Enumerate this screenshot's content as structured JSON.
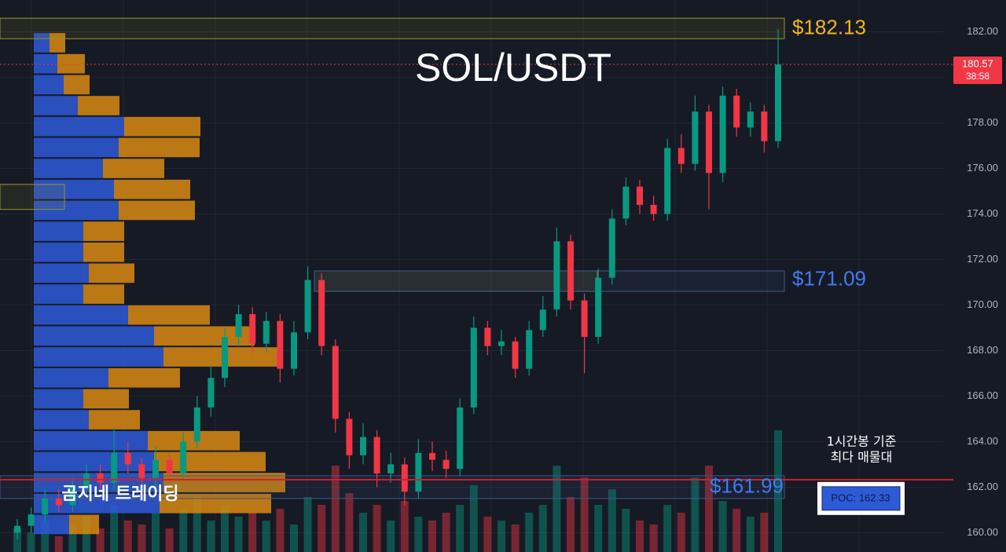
{
  "chart_data": {
    "type": "candlestick",
    "title": "SOL/USDT",
    "watermark": "곰지네 트레이딩",
    "ylim": [
      159.15,
      183.4
    ],
    "yticks": [
      {
        "value": 160,
        "label": "160.00"
      },
      {
        "value": 162,
        "label": "162.00"
      },
      {
        "value": 164,
        "label": "164.00"
      },
      {
        "value": 166,
        "label": "166.00"
      },
      {
        "value": 168,
        "label": "168.00"
      },
      {
        "value": 170,
        "label": "170.00"
      },
      {
        "value": 172,
        "label": "172.00"
      },
      {
        "value": 174,
        "label": "174.00"
      },
      {
        "value": 176,
        "label": "176.00"
      },
      {
        "value": 178,
        "label": "178.00"
      },
      {
        "value": 180,
        "label": "180.00"
      },
      {
        "value": 182,
        "label": "182.00"
      }
    ],
    "grid": true,
    "up_color": "#089981",
    "down_color": "#f23645",
    "open": [
      160.0,
      160.3,
      160.8,
      161.5,
      161.2,
      162.0,
      162.6,
      162.2,
      163.5,
      163.0,
      162.4,
      163.2,
      162.6,
      164.0,
      165.5,
      166.8,
      168.6,
      169.6,
      168.3,
      169.3,
      167.2,
      168.8,
      171.1,
      168.2,
      165.0,
      163.4,
      164.2,
      162.6,
      163.0,
      161.8,
      163.5,
      163.2,
      162.8,
      165.5,
      169.0,
      168.2,
      168.4,
      167.2,
      168.9,
      169.8,
      172.8,
      170.2,
      168.6,
      171.2,
      173.8,
      175.2,
      174.4,
      174.0,
      176.9,
      176.2,
      178.5,
      175.8,
      179.2,
      177.8,
      178.5,
      177.2
    ],
    "high": [
      160.6,
      161.1,
      161.9,
      161.9,
      162.4,
      163.0,
      163.0,
      164.6,
      164.0,
      163.3,
      163.8,
      163.5,
      164.4,
      166.0,
      167.3,
      169.0,
      170.0,
      169.9,
      169.7,
      169.6,
      169.3,
      171.7,
      171.4,
      168.5,
      165.3,
      164.8,
      164.5,
      163.5,
      163.3,
      164.1,
      164.0,
      163.6,
      165.9,
      169.5,
      169.3,
      168.9,
      168.6,
      169.3,
      170.4,
      173.4,
      173.1,
      170.5,
      171.6,
      174.2,
      175.6,
      175.5,
      174.8,
      177.3,
      177.5,
      179.2,
      178.8,
      179.6,
      179.5,
      178.9,
      178.8,
      182.13
    ],
    "low": [
      159.7,
      160.0,
      160.5,
      160.9,
      160.9,
      161.7,
      161.8,
      161.9,
      162.6,
      161.9,
      162.0,
      162.2,
      162.3,
      163.7,
      165.1,
      166.4,
      168.2,
      167.9,
      167.9,
      166.6,
      166.9,
      168.5,
      167.8,
      164.4,
      162.8,
      163.0,
      162.0,
      162.2,
      161.2,
      161.5,
      162.7,
      162.4,
      162.5,
      165.2,
      167.8,
      167.8,
      166.8,
      166.9,
      168.6,
      169.5,
      169.8,
      167.0,
      168.3,
      170.9,
      173.5,
      174.0,
      173.7,
      173.7,
      175.8,
      175.9,
      174.2,
      175.4,
      177.4,
      177.4,
      176.7,
      176.9
    ],
    "close": [
      160.3,
      160.8,
      161.5,
      161.2,
      162.0,
      162.6,
      162.2,
      163.5,
      163.0,
      162.4,
      163.2,
      162.6,
      164.0,
      165.5,
      166.8,
      168.6,
      169.6,
      168.3,
      169.3,
      167.2,
      168.8,
      171.1,
      168.2,
      165.0,
      163.4,
      164.2,
      162.6,
      163.0,
      161.8,
      163.5,
      163.2,
      162.8,
      165.5,
      169.0,
      168.2,
      168.4,
      167.2,
      168.9,
      169.8,
      172.8,
      170.2,
      168.6,
      171.2,
      173.8,
      175.2,
      174.4,
      174.0,
      176.9,
      176.2,
      178.5,
      175.8,
      179.2,
      177.8,
      178.5,
      177.2,
      180.57
    ],
    "volume": [
      30,
      25,
      40,
      20,
      35,
      45,
      30,
      60,
      40,
      35,
      50,
      30,
      55,
      70,
      40,
      60,
      45,
      50,
      40,
      55,
      35,
      70,
      60,
      110,
      75,
      50,
      60,
      40,
      65,
      45,
      40,
      50,
      60,
      85,
      45,
      40,
      35,
      50,
      60,
      110,
      70,
      95,
      60,
      80,
      55,
      40,
      35,
      60,
      50,
      95,
      110,
      65,
      55,
      45,
      50,
      155
    ],
    "vlim": [
      0,
      170
    ],
    "profile": {
      "row_size": 0.92,
      "levels": [
        159.9,
        160.82,
        161.74,
        162.66,
        163.58,
        164.5,
        165.42,
        166.34,
        167.26,
        168.18,
        169.1,
        170.02,
        170.94,
        171.86,
        172.78,
        173.7,
        174.62,
        175.54,
        176.46,
        177.38,
        178.3,
        179.22,
        180.14,
        181.06
      ],
      "buy": [
        45,
        160,
        165,
        153,
        145,
        70,
        63,
        95,
        165,
        153,
        120,
        63,
        70,
        63,
        63,
        108,
        102,
        88,
        108,
        115,
        56,
        38,
        30,
        20
      ],
      "sell": [
        38,
        142,
        155,
        142,
        117,
        65,
        58,
        91,
        150,
        128,
        104,
        52,
        58,
        52,
        52,
        97,
        97,
        78,
        103,
        97,
        53,
        33,
        35,
        20
      ],
      "xlim": [
        0,
        1157
      ],
      "buy_color": "#2d5bd8",
      "sell_color": "#d88a12"
    },
    "zones": [
      {
        "low": 181.7,
        "high": 182.6,
        "color": "#9c9528"
      },
      {
        "low": 174.2,
        "high": 175.3,
        "color": "#9c9528"
      },
      {
        "low": 170.6,
        "high": 171.5,
        "color": "#9c9528"
      },
      {
        "low": 170.6,
        "high": 171.5,
        "color": "#3a5a8c"
      },
      {
        "low": 161.5,
        "high": 162.5,
        "color": "#3a5a8c"
      }
    ],
    "annotations": [
      {
        "text": "$182.13",
        "value": 182.13,
        "color": "#f2b51d"
      },
      {
        "text": "$171.09",
        "value": 171.09,
        "color": "#3f7cf0"
      },
      {
        "text": "$161.99",
        "value": 161.99,
        "color": "#3f7cf0"
      }
    ],
    "poc": {
      "value": 162.33,
      "label": "POC: 162.33",
      "color": "#d11f2a",
      "note": [
        "1시간봉 기준",
        "최다 매물대"
      ]
    },
    "last_price": {
      "value": 180.57,
      "label": "180.57",
      "countdown": "38:58",
      "color": "#f23645"
    }
  }
}
